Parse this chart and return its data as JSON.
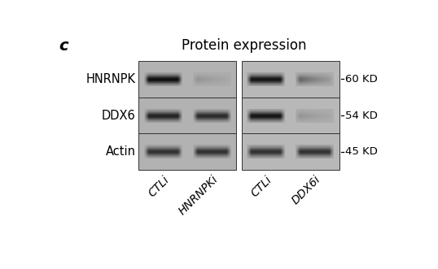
{
  "title": "Protein expression",
  "panel_label": "c",
  "background_color": "#ffffff",
  "bg_color_left": "#b2b2b2",
  "bg_color_right": "#b8b8b8",
  "line_color": "#333333",
  "row_labels": [
    "HNRNPK",
    "DDX6",
    "Actin"
  ],
  "kd_labels": [
    "60 KD",
    "54 KD",
    "45 KD"
  ],
  "col_labels": [
    "CTLi",
    "HNRNPKi",
    "CTLi",
    "DDX6i"
  ],
  "title_fontsize": 12,
  "label_fontsize": 10.5,
  "kd_fontsize": 9.5,
  "col_label_fontsize": 10,
  "panel_label_fontsize": 14,
  "fig_width": 5.38,
  "fig_height": 3.31,
  "dpi": 100
}
